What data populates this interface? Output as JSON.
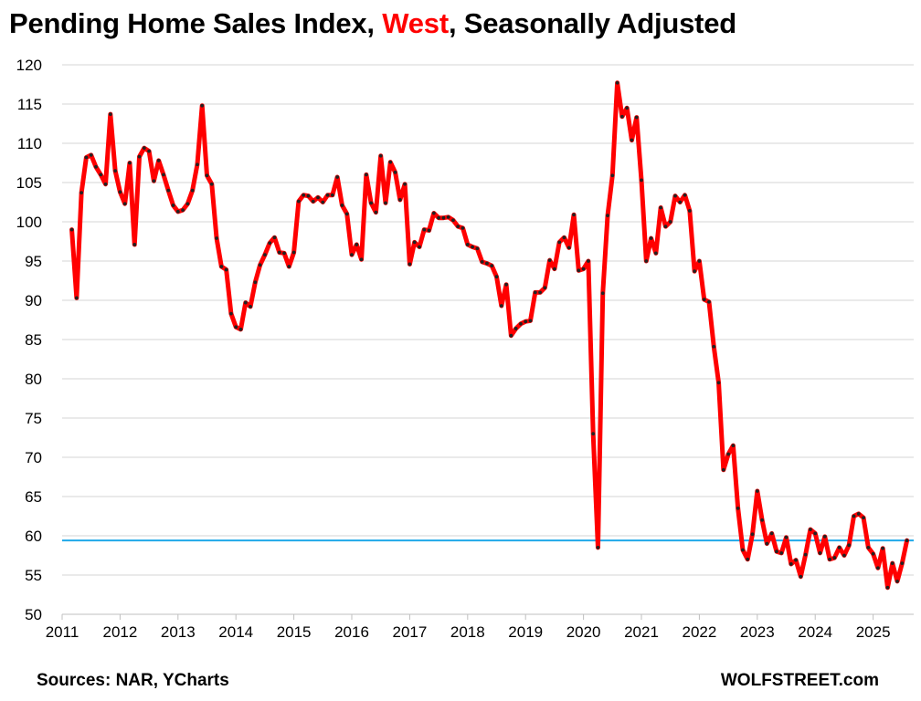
{
  "title": {
    "prefix": "Pending Home Sales Index, ",
    "highlight": "West",
    "suffix": ", Seasonally Adjusted"
  },
  "footer": {
    "source": "Sources: NAR, YCharts",
    "brand": "WOLFSTREET.com"
  },
  "colors": {
    "series_line": "#ff0000",
    "series_markers": "#222222",
    "reference_line": "#1fa8e8",
    "highlight_text": "#ff0000",
    "grid": "#d4d4d4"
  },
  "chart_data": {
    "type": "line",
    "title": "Pending Home Sales Index, West, Seasonally Adjusted",
    "xlabel": "",
    "ylabel": "",
    "x_start": "2011-03",
    "x_frequency": "monthly",
    "xlim": [
      2011,
      2025.7
    ],
    "ylim": [
      50,
      120
    ],
    "y_ticks": [
      50,
      55,
      60,
      65,
      70,
      75,
      80,
      85,
      90,
      95,
      100,
      105,
      110,
      115,
      120
    ],
    "x_ticks": [
      2011,
      2012,
      2013,
      2014,
      2015,
      2016,
      2017,
      2018,
      2019,
      2020,
      2021,
      2022,
      2023,
      2024,
      2025
    ],
    "x_tick_labels": [
      "2011",
      "2012",
      "2013",
      "2014",
      "2015",
      "2016",
      "2017",
      "2018",
      "2019",
      "2020",
      "2021",
      "2022",
      "2023",
      "2024",
      "2025"
    ],
    "grid": "horizontal",
    "reference_line": {
      "y": 59.4
    },
    "series": [
      {
        "values": [
          99.0,
          90.3,
          103.7,
          108.2,
          108.5,
          107.0,
          106.0,
          104.8,
          113.7,
          106.5,
          103.8,
          102.3,
          107.5,
          97.1,
          108.3,
          109.4,
          109.0,
          105.2,
          107.8,
          106.0,
          104.0,
          102.1,
          101.3,
          101.5,
          102.3,
          104.0,
          107.3,
          114.8,
          105.9,
          104.8,
          97.9,
          94.3,
          93.9,
          88.3,
          86.6,
          86.3,
          89.7,
          89.2,
          92.3,
          94.5,
          95.8,
          97.3,
          98.0,
          96.1,
          96.0,
          94.3,
          96.1,
          102.6,
          103.4,
          103.3,
          102.6,
          103.1,
          102.5,
          103.4,
          103.4,
          105.7,
          102.1,
          101.0,
          95.8,
          97.1,
          95.2,
          106.0,
          102.4,
          101.2,
          108.4,
          102.4,
          107.6,
          106.3,
          102.8,
          104.8,
          94.6,
          97.4,
          96.8,
          99.0,
          98.9,
          101.1,
          100.5,
          100.5,
          100.6,
          100.2,
          99.4,
          99.2,
          97.1,
          96.8,
          96.6,
          94.9,
          94.7,
          94.4,
          93.0,
          89.3,
          92.0,
          85.5,
          86.4,
          87.0,
          87.3,
          87.4,
          91.0,
          91.0,
          91.6,
          95.1,
          94.0,
          97.4,
          98.0,
          96.7,
          100.9,
          93.8,
          94.0,
          95.0,
          73.0,
          58.5,
          90.9,
          100.8,
          105.9,
          117.7,
          113.4,
          114.5,
          110.4,
          113.3,
          105.3,
          95.0,
          97.9,
          96.0,
          101.8,
          99.4,
          100.0,
          103.3,
          102.5,
          103.4,
          101.4,
          93.7,
          95.0,
          90.1,
          89.8,
          84.1,
          79.5,
          68.4,
          70.4,
          71.5,
          63.5,
          58.2,
          57.0,
          60.2,
          65.7,
          62.0,
          59.0,
          60.3,
          58.0,
          57.8,
          59.8,
          56.4,
          56.9,
          54.8,
          57.6,
          60.8,
          60.3,
          57.8,
          59.9,
          57.0,
          57.2,
          58.5,
          57.5,
          58.8,
          62.5,
          62.8,
          62.3,
          58.5,
          57.7,
          55.9,
          58.4,
          53.4,
          56.5,
          54.2,
          56.5,
          59.4
        ]
      }
    ]
  }
}
